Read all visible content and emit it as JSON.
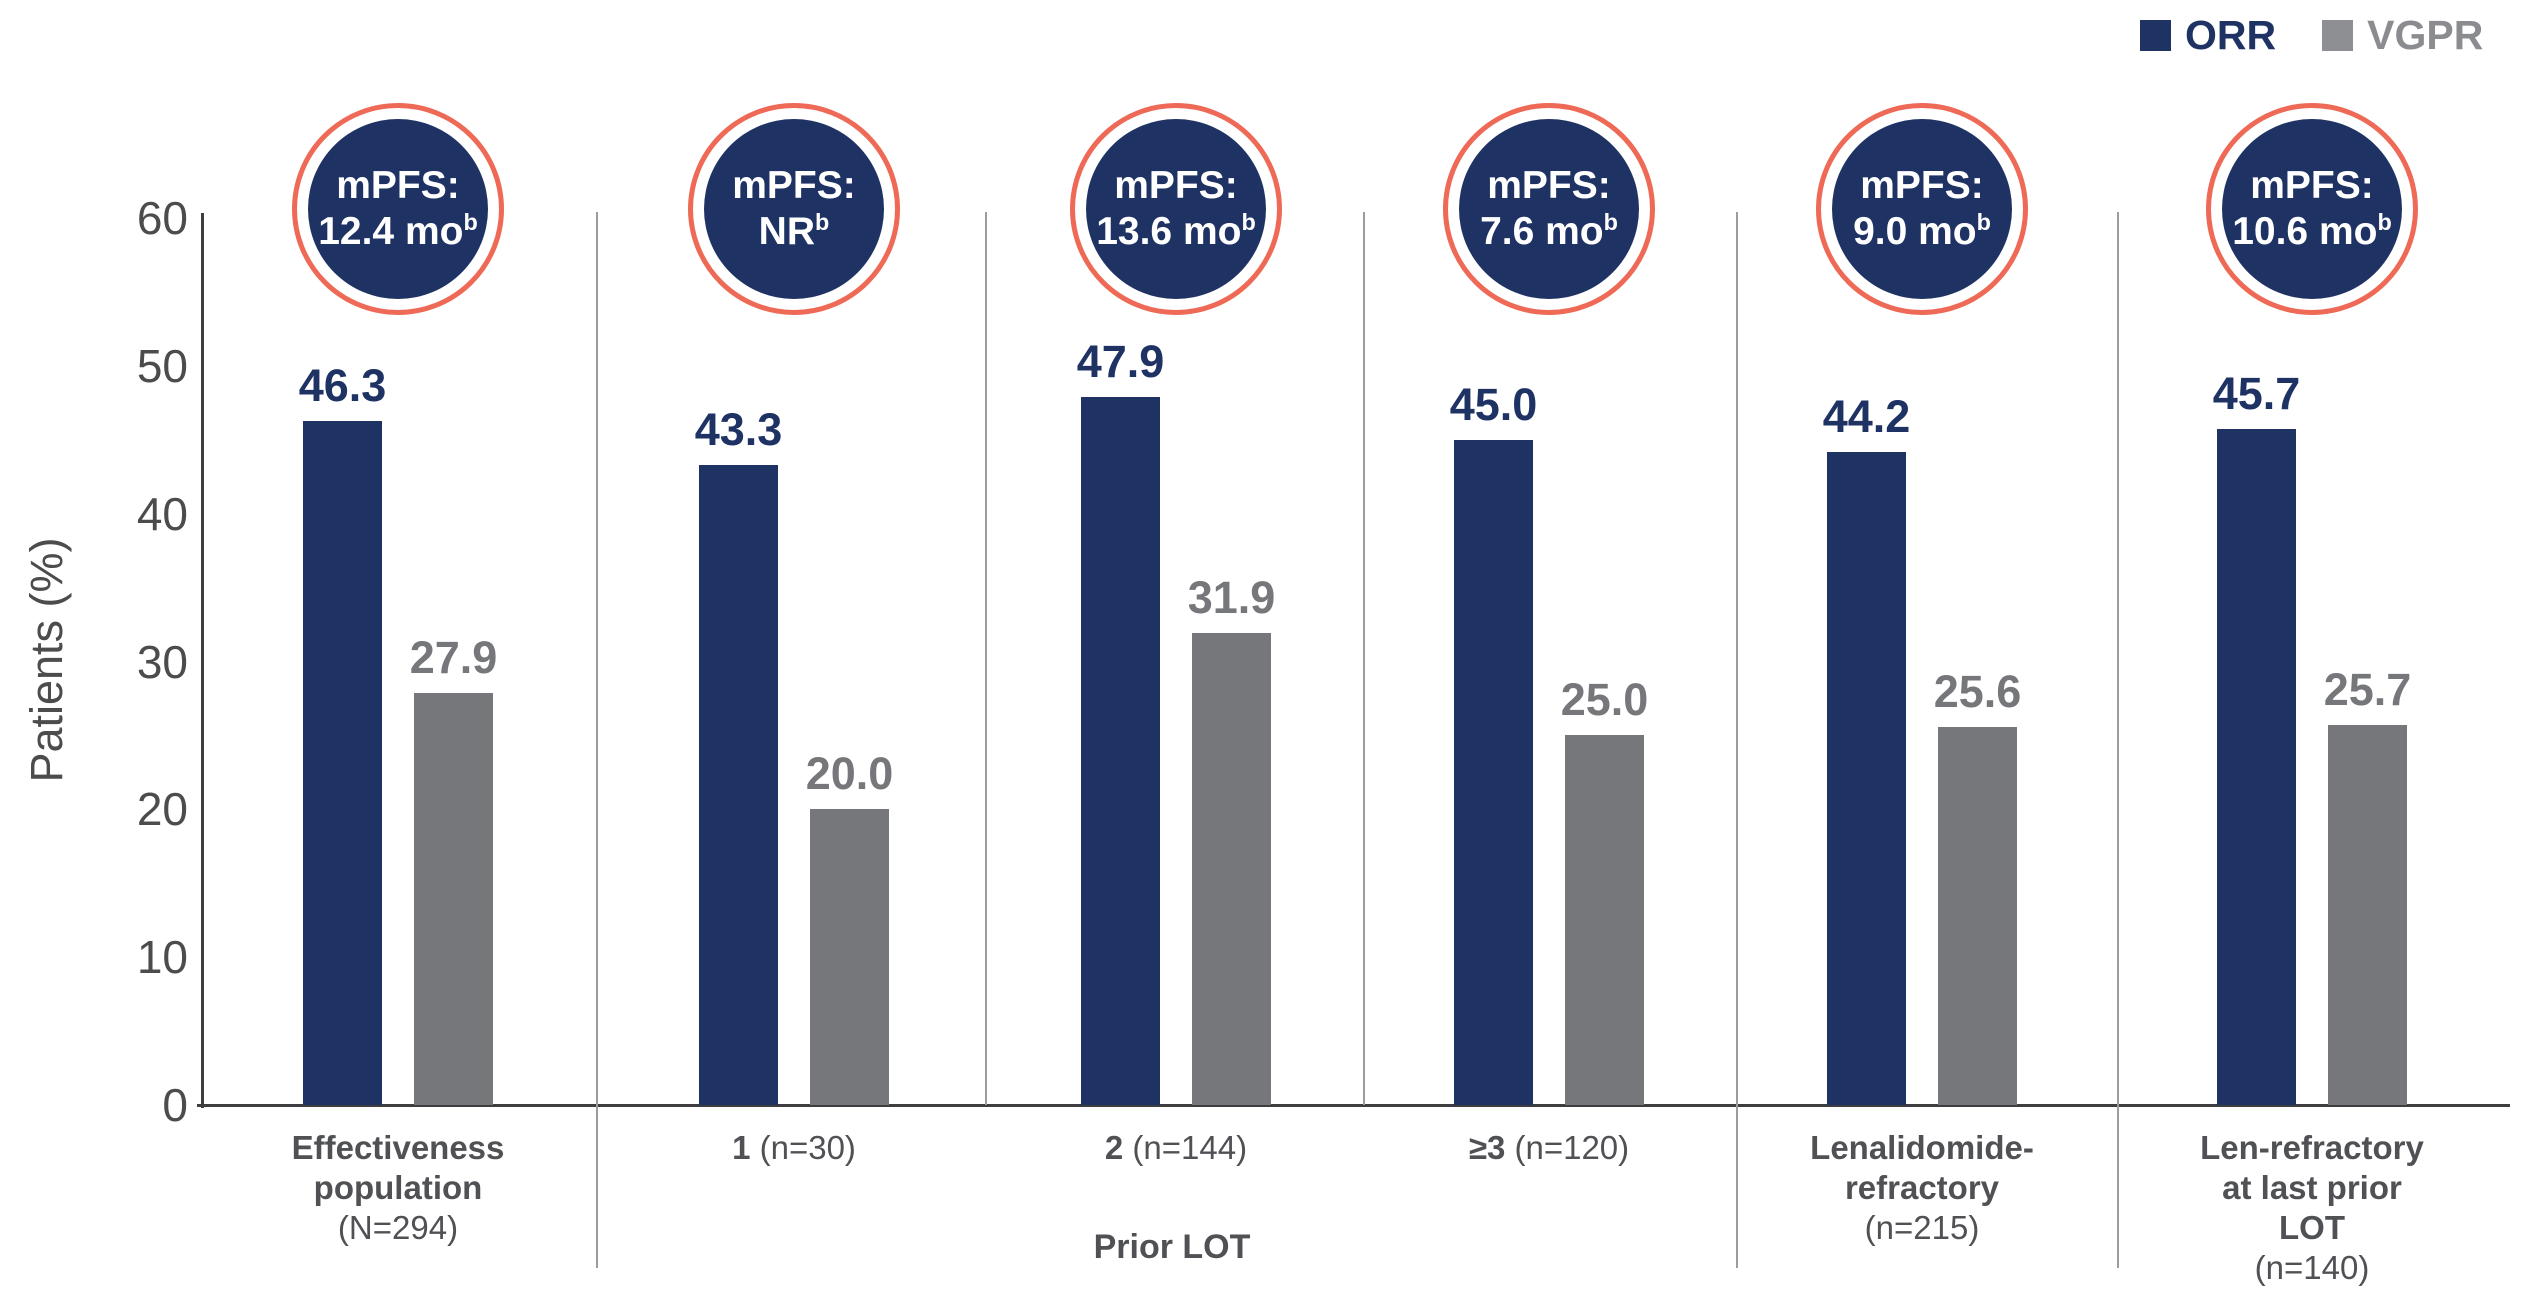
{
  "legend": {
    "orr": "ORR",
    "vgpr": "VGPR"
  },
  "colors": {
    "navy": "#1F3264",
    "coral": "#EE6A57",
    "bar_gray": "#76777A",
    "legend_gray": "#8E8F92",
    "legend_gray_text": "#8B8C8F",
    "axis_text": "#4C4C4E",
    "label_text": "#505155",
    "axis_line": "#3E3E41",
    "divider": "#9C9C9E",
    "circle_text": "#FFFFFF"
  },
  "chart_data": {
    "type": "bar",
    "title": "",
    "xlabel": "",
    "ylabel": "Patients (%)",
    "ylim": [
      0,
      60
    ],
    "y_ticks": [
      0,
      10,
      20,
      30,
      40,
      50,
      60
    ],
    "grid": false,
    "legend_position": "top-right",
    "series_names": [
      "ORR",
      "VGPR"
    ],
    "groups": [
      {
        "orr": 46.3,
        "vgpr": 27.9,
        "mpfs_prefix": "mPFS:",
        "mpfs_value": "12.4 mo",
        "mpfs_footnote": "b",
        "label_lines": [
          [
            {
              "t": "Effectiveness",
              "b": true
            }
          ],
          [
            {
              "t": "population",
              "b": true
            }
          ],
          [
            {
              "t": "(N=294)",
              "b": false
            }
          ]
        ],
        "divider_after": "long"
      },
      {
        "orr": 43.3,
        "vgpr": 20.0,
        "mpfs_prefix": "mPFS:",
        "mpfs_value": "NR",
        "mpfs_footnote": "b",
        "label_lines": [
          [
            {
              "t": "1",
              "b": true
            },
            {
              "t": " (n=30)",
              "b": false
            }
          ]
        ],
        "divider_after": "short"
      },
      {
        "orr": 47.9,
        "vgpr": 31.9,
        "mpfs_prefix": "mPFS:",
        "mpfs_value": "13.6 mo",
        "mpfs_footnote": "b",
        "label_lines": [
          [
            {
              "t": "2",
              "b": true
            },
            {
              "t": " (n=144)",
              "b": false
            }
          ]
        ],
        "divider_after": "short"
      },
      {
        "orr": 45.0,
        "vgpr": 25.0,
        "mpfs_prefix": "mPFS:",
        "mpfs_value": "7.6 mo",
        "mpfs_footnote": "b",
        "label_lines": [
          [
            {
              "t": "≥3",
              "b": true
            },
            {
              "t": " (n=120)",
              "b": false
            }
          ]
        ],
        "divider_after": "long"
      },
      {
        "orr": 44.2,
        "vgpr": 25.6,
        "mpfs_prefix": "mPFS:",
        "mpfs_value": "9.0 mo",
        "mpfs_footnote": "b",
        "label_lines": [
          [
            {
              "t": "Lenalidomide-",
              "b": true
            }
          ],
          [
            {
              "t": "refractory",
              "b": true
            }
          ],
          [
            {
              "t": "(n=215)",
              "b": false
            }
          ]
        ],
        "divider_after": "long"
      },
      {
        "orr": 45.7,
        "vgpr": 25.7,
        "mpfs_prefix": "mPFS:",
        "mpfs_value": "10.6 mo",
        "mpfs_footnote": "b",
        "label_lines": [
          [
            {
              "t": "Len-refractory",
              "b": true
            }
          ],
          [
            {
              "t": "at last prior",
              "b": true
            }
          ],
          [
            {
              "t": "LOT",
              "b": true
            }
          ],
          [
            {
              "t": "(n=140)",
              "b": false
            }
          ]
        ],
        "divider_after": null
      }
    ],
    "x_section": {
      "label": "Prior LOT",
      "start_group": 1,
      "end_group": 3
    }
  }
}
